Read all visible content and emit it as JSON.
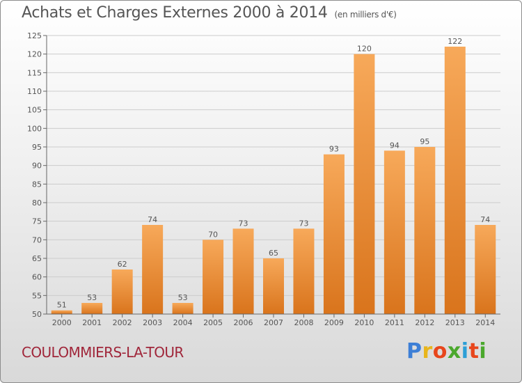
{
  "header": {
    "title": "Achats et Charges Externes 2000 à 2014",
    "unit": "(en milliers d'€)"
  },
  "footer": {
    "commune": "COULOMMIERS-LA-TOUR",
    "logo_letters": [
      "P",
      "r",
      "o",
      "x",
      "i",
      "t",
      "i"
    ],
    "logo_colors": [
      "#3d7fd6",
      "#e8b51c",
      "#e8461c",
      "#4aa82c",
      "#2c9fd6",
      "#e8461c",
      "#4aa82c"
    ]
  },
  "colors": {
    "bar_light": "#f7a95a",
    "bar_dark": "#d9741c",
    "grid": "#cccccc",
    "text": "#555555"
  },
  "chart_data": {
    "type": "bar",
    "categories": [
      "2000",
      "2001",
      "2002",
      "2003",
      "2004",
      "2005",
      "2006",
      "2007",
      "2008",
      "2009",
      "2010",
      "2011",
      "2012",
      "2013",
      "2014"
    ],
    "values": [
      51,
      53,
      62,
      74,
      53,
      70,
      73,
      65,
      73,
      93,
      120,
      94,
      95,
      122,
      74
    ],
    "ylim": [
      50,
      125
    ],
    "yticks": [
      50,
      55,
      60,
      65,
      70,
      75,
      80,
      85,
      90,
      95,
      100,
      105,
      110,
      115,
      120,
      125
    ],
    "grid": true
  }
}
